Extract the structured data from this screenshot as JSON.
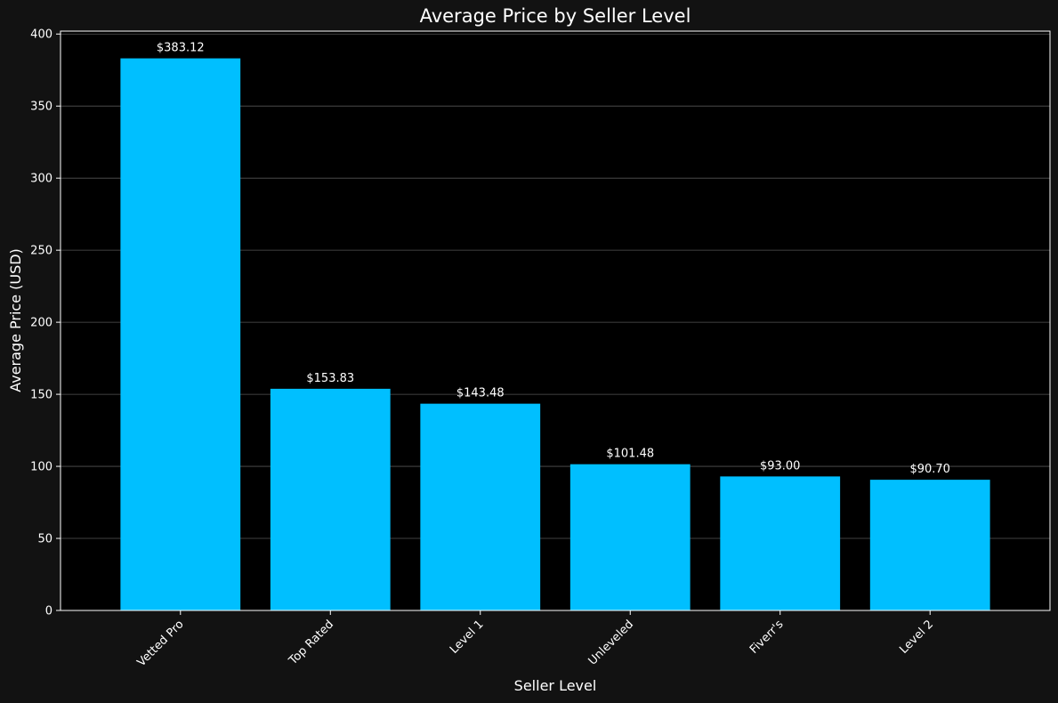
{
  "chart_data": {
    "type": "bar",
    "title": "Average Price by Seller Level",
    "xlabel": "Seller Level",
    "ylabel": "Average Price (USD)",
    "categories": [
      "Vetted Pro",
      "Top Rated",
      "Level 1",
      "Unleveled",
      "Fiverr's",
      "Level 2"
    ],
    "values": [
      383.12,
      153.83,
      143.48,
      101.48,
      93.0,
      90.7
    ],
    "value_labels": [
      "$383.12",
      "$153.83",
      "$143.48",
      "$101.48",
      "$93.00",
      "$90.70"
    ],
    "ylim": [
      0,
      402
    ],
    "yticks": [
      0,
      50,
      100,
      150,
      200,
      250,
      300,
      350,
      400
    ],
    "grid": "y",
    "legend": "none",
    "colors": {
      "background": "#121212",
      "plot_background": "#000000",
      "bar": "#00bfff",
      "grid": "#555555",
      "text": "#ffffff",
      "axes": "#ffffff"
    }
  }
}
